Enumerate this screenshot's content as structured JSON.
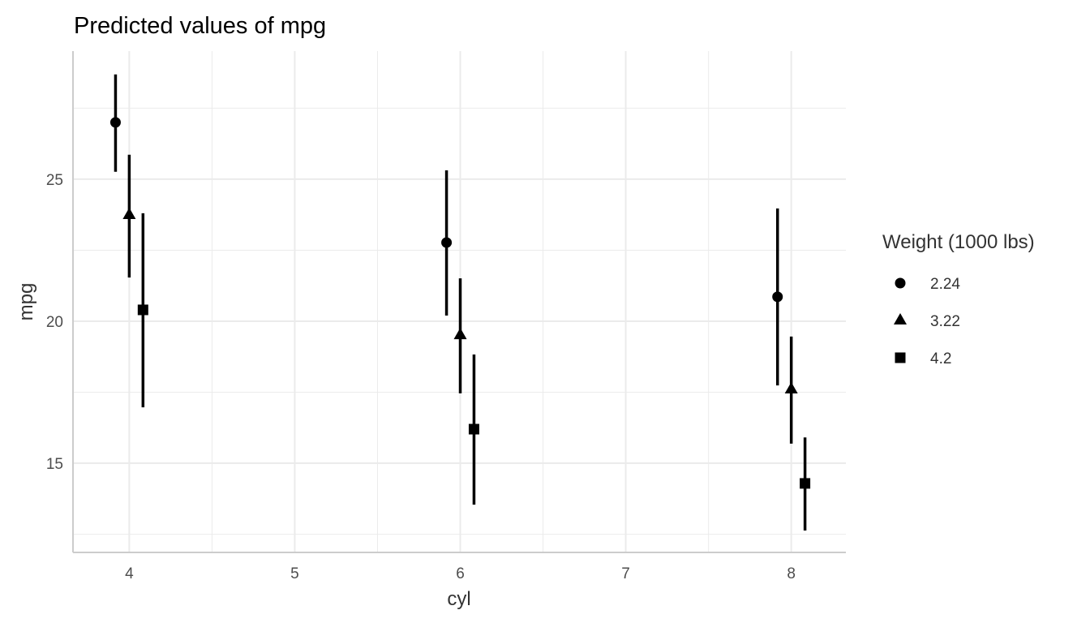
{
  "chart_data": {
    "type": "scatter",
    "title": "Predicted values of mpg",
    "xlabel": "cyl",
    "ylabel": "mpg",
    "xlim": [
      3.66,
      8.33
    ],
    "ylim": [
      11.86,
      29.51
    ],
    "x_ticks": [
      4,
      5,
      6,
      7,
      8
    ],
    "y_ticks": [
      15,
      20,
      25
    ],
    "grid": true,
    "legend": {
      "title": "Weight (1000 lbs)",
      "placement": "right"
    },
    "series": [
      {
        "name": "2.24",
        "shape": "circle",
        "x": [
          4,
          6,
          8
        ],
        "y": [
          27.0,
          22.77,
          20.86
        ],
        "ci_low": [
          25.26,
          20.2,
          17.74
        ],
        "ci_high": [
          28.69,
          25.31,
          23.97
        ]
      },
      {
        "name": "3.22",
        "shape": "triangle",
        "x": [
          4,
          6,
          8
        ],
        "y": [
          23.74,
          19.51,
          17.6
        ],
        "ci_low": [
          21.54,
          17.46,
          15.69
        ],
        "ci_high": [
          25.86,
          21.51,
          19.46
        ]
      },
      {
        "name": "4.2",
        "shape": "square",
        "x": [
          4,
          6,
          8
        ],
        "y": [
          20.4,
          16.2,
          14.29
        ],
        "ci_low": [
          16.97,
          13.54,
          12.63
        ],
        "ci_high": [
          23.8,
          18.83,
          15.91
        ]
      }
    ],
    "colors": {
      "marks": "#000000",
      "grid": "#ebebeb",
      "axis": "#cccccc",
      "tick_text": "#4d4d4d"
    }
  }
}
